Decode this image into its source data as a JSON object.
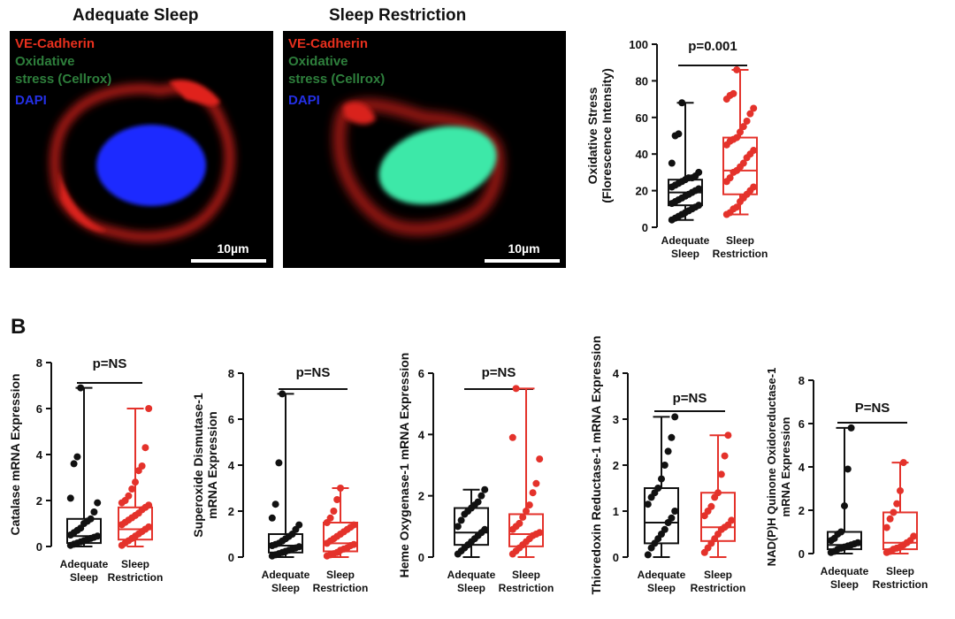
{
  "panel_a": {
    "images": [
      {
        "title": "Adequate Sleep",
        "labels": [
          {
            "text": "VE-Cadherin",
            "color": "#e8301e"
          },
          {
            "text": "DAPI",
            "color": "#2430e6"
          }
        ],
        "scale": "10µm",
        "nucleus_color": "#1a2bff"
      },
      {
        "title": "Sleep Restriction",
        "labels": [
          {
            "text": "VE-Cadherin",
            "color": "#e8301e"
          },
          {
            "text": "Oxidative",
            "color": "#2e7f3c"
          },
          {
            "text": "stress (Cellrox)",
            "color": "#2e7f3c"
          },
          {
            "text": "DAPI",
            "color": "#2430e6"
          }
        ],
        "scale": "10µm",
        "nucleus_color": "#3de8a8"
      }
    ],
    "overlay_labels_first": [
      {
        "text": "Oxidative",
        "color": "#2e7f3c"
      },
      {
        "text": "stress (Cellrox)",
        "color": "#2e7f3c"
      }
    ]
  },
  "panel_b": {
    "letter": "B"
  },
  "colors": {
    "adequate": "#111111",
    "restriction": "#e4322b"
  },
  "chart_data": [
    {
      "type": "box",
      "ylabel": [
        "Oxidative Stress",
        "(Florescence Intensity)"
      ],
      "categories": [
        [
          "Adequate",
          "Sleep"
        ],
        [
          "Sleep",
          "Restriction"
        ]
      ],
      "ylim": [
        0,
        100
      ],
      "yticks": [
        0,
        20,
        40,
        60,
        80,
        100
      ],
      "annotation": "p=0.001",
      "series": [
        {
          "min": 4,
          "q1": 12,
          "median": 19,
          "q3": 26,
          "max": 68,
          "points": [
            4,
            5,
            6,
            7,
            8,
            9,
            10,
            11,
            12,
            13,
            14,
            15,
            16,
            17,
            18,
            19,
            20,
            21,
            22,
            23,
            24,
            25,
            26,
            27,
            27,
            28,
            30,
            35,
            50,
            51,
            68
          ]
        },
        {
          "min": 7,
          "q1": 18,
          "median": 31,
          "q3": 49,
          "max": 86,
          "points": [
            7,
            8,
            10,
            11,
            14,
            16,
            18,
            20,
            22,
            25,
            27,
            30,
            31,
            33,
            35,
            38,
            40,
            42,
            45,
            47,
            48,
            49,
            52,
            55,
            58,
            62,
            65,
            70,
            72,
            73,
            86
          ]
        }
      ]
    },
    {
      "type": "box",
      "ylabel": [
        "Catalase mRNA Expression"
      ],
      "categories": [
        [
          "Adequate",
          "Sleep"
        ],
        [
          "Sleep",
          "Restriction"
        ]
      ],
      "ylim": [
        0,
        8
      ],
      "yticks": [
        0,
        2,
        4,
        6,
        8
      ],
      "annotation": "p=NS",
      "series": [
        {
          "min": 0.0,
          "q1": 0.15,
          "median": 0.45,
          "q3": 1.2,
          "max": 6.9,
          "points": [
            0.05,
            0.1,
            0.15,
            0.2,
            0.25,
            0.3,
            0.35,
            0.4,
            0.45,
            0.5,
            0.6,
            0.7,
            0.8,
            1.0,
            1.1,
            1.2,
            1.5,
            1.9,
            2.1,
            3.6,
            3.9,
            6.9
          ]
        },
        {
          "min": 0.0,
          "q1": 0.3,
          "median": 0.75,
          "q3": 1.7,
          "max": 6.0,
          "points": [
            0.05,
            0.15,
            0.25,
            0.35,
            0.45,
            0.55,
            0.65,
            0.75,
            0.85,
            0.95,
            1.05,
            1.15,
            1.25,
            1.35,
            1.45,
            1.6,
            1.7,
            1.8,
            1.9,
            2.0,
            2.2,
            2.5,
            2.8,
            3.3,
            3.5,
            4.3,
            6.0
          ]
        }
      ]
    },
    {
      "type": "box",
      "ylabel": [
        "Superoxide Dismutase-1",
        "mRNA Expression"
      ],
      "categories": [
        [
          "Adequate",
          "Sleep"
        ],
        [
          "Sleep",
          "Restriction"
        ]
      ],
      "ylim": [
        0,
        8
      ],
      "yticks": [
        0,
        2,
        4,
        6,
        8
      ],
      "annotation": "p=NS",
      "series": [
        {
          "min": 0.0,
          "q1": 0.2,
          "median": 0.5,
          "q3": 1.0,
          "max": 7.1,
          "points": [
            0.05,
            0.1,
            0.15,
            0.2,
            0.25,
            0.3,
            0.35,
            0.4,
            0.45,
            0.5,
            0.55,
            0.6,
            0.7,
            0.8,
            0.9,
            1.0,
            1.2,
            1.4,
            1.7,
            2.3,
            4.1,
            7.1
          ]
        },
        {
          "min": 0.0,
          "q1": 0.25,
          "median": 0.6,
          "q3": 1.5,
          "max": 3.0,
          "points": [
            0.05,
            0.1,
            0.15,
            0.2,
            0.3,
            0.35,
            0.4,
            0.5,
            0.55,
            0.6,
            0.7,
            0.8,
            0.9,
            1.0,
            1.1,
            1.2,
            1.3,
            1.4,
            1.5,
            1.7,
            2.0,
            2.5,
            3.0
          ]
        }
      ]
    },
    {
      "type": "box",
      "ylabel": [
        "Heme Oxygenase-1 mRNA Expression"
      ],
      "categories": [
        [
          "Adequate",
          "Sleep"
        ],
        [
          "Sleep",
          "Restriction"
        ]
      ],
      "ylim": [
        0,
        6
      ],
      "yticks": [
        0,
        2,
        4,
        6
      ],
      "annotation": "p=NS",
      "series": [
        {
          "min": 0.0,
          "q1": 0.4,
          "median": 0.8,
          "q3": 1.6,
          "max": 2.2,
          "points": [
            0.1,
            0.2,
            0.3,
            0.4,
            0.5,
            0.6,
            0.7,
            0.8,
            0.9,
            1.0,
            1.2,
            1.4,
            1.5,
            1.6,
            1.7,
            1.8,
            2.0,
            2.2
          ]
        },
        {
          "min": 0.0,
          "q1": 0.35,
          "median": 0.75,
          "q3": 1.4,
          "max": 5.5,
          "points": [
            0.1,
            0.2,
            0.3,
            0.4,
            0.5,
            0.6,
            0.7,
            0.75,
            0.8,
            0.9,
            1.0,
            1.1,
            1.3,
            1.5,
            1.7,
            2.1,
            2.4,
            3.2,
            3.9,
            5.5
          ]
        }
      ]
    },
    {
      "type": "box",
      "ylabel": [
        "Thioredoxin Reductase-1 mRNA Expression"
      ],
      "categories": [
        [
          "Adequate",
          "Sleep"
        ],
        [
          "Sleep",
          "Restriction"
        ]
      ],
      "ylim": [
        0,
        4
      ],
      "yticks": [
        0,
        1,
        2,
        3,
        4
      ],
      "annotation": "p=NS",
      "series": [
        {
          "min": 0.0,
          "q1": 0.3,
          "median": 0.75,
          "q3": 1.5,
          "max": 3.05,
          "points": [
            0.05,
            0.2,
            0.3,
            0.4,
            0.5,
            0.6,
            0.75,
            0.85,
            1.0,
            1.15,
            1.3,
            1.4,
            1.5,
            1.7,
            2.0,
            2.3,
            2.6,
            3.05
          ]
        },
        {
          "min": 0.0,
          "q1": 0.35,
          "median": 0.65,
          "q3": 1.4,
          "max": 2.65,
          "points": [
            0.1,
            0.2,
            0.3,
            0.4,
            0.5,
            0.6,
            0.65,
            0.7,
            0.8,
            0.9,
            1.0,
            1.1,
            1.3,
            1.4,
            1.8,
            2.2,
            2.65
          ]
        }
      ]
    },
    {
      "type": "box",
      "ylabel": [
        "NAD(P)H Quinone Oxidoreductase-1",
        "mRNA Expression"
      ],
      "categories": [
        [
          "Adequate",
          "Sleep"
        ],
        [
          "Sleep",
          "Restriction"
        ]
      ],
      "ylim": [
        0,
        8
      ],
      "yticks": [
        0,
        2,
        4,
        6,
        8
      ],
      "annotation": "P=NS",
      "series": [
        {
          "min": 0.0,
          "q1": 0.2,
          "median": 0.4,
          "q3": 1.0,
          "max": 5.8,
          "points": [
            0.05,
            0.1,
            0.2,
            0.25,
            0.3,
            0.35,
            0.4,
            0.45,
            0.5,
            0.6,
            0.7,
            0.9,
            1.0,
            2.2,
            3.9,
            5.8
          ]
        },
        {
          "min": 0.0,
          "q1": 0.2,
          "median": 0.5,
          "q3": 1.9,
          "max": 4.2,
          "points": [
            0.05,
            0.1,
            0.2,
            0.25,
            0.3,
            0.4,
            0.5,
            0.6,
            0.8,
            1.2,
            1.6,
            1.9,
            2.3,
            2.9,
            4.2
          ]
        }
      ]
    }
  ]
}
